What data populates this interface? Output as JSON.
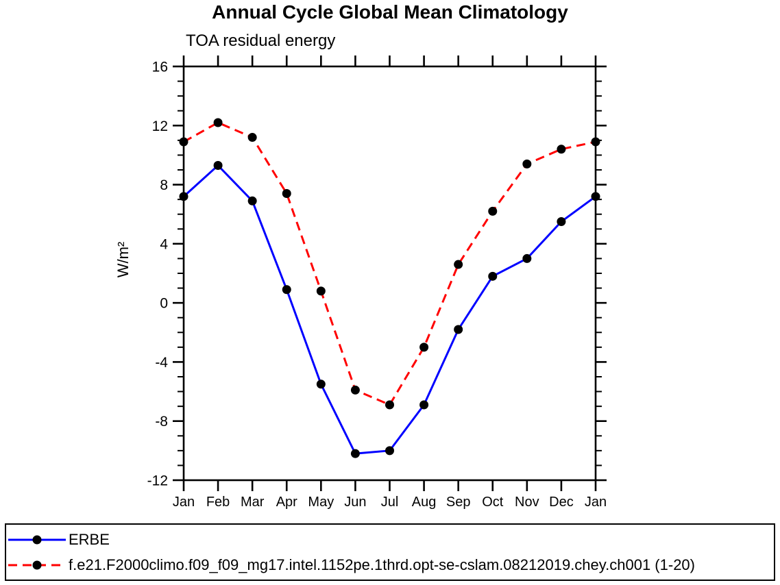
{
  "title": "Annual Cycle Global Mean Climatology",
  "subtitle": "TOA residual energy",
  "chart_data": {
    "type": "line",
    "title": "Annual Cycle Global Mean Climatology",
    "subtitle": "TOA residual energy",
    "xlabel": "",
    "ylabel": "W/m²",
    "categories": [
      "Jan",
      "Feb",
      "Mar",
      "Apr",
      "May",
      "Jun",
      "Jul",
      "Aug",
      "Sep",
      "Oct",
      "Nov",
      "Dec",
      "Jan"
    ],
    "ylim": [
      -12,
      16
    ],
    "ytick_major": 4,
    "ytick_minor": 1,
    "ytick_labels": [
      "-12",
      "-8",
      "-4",
      "0",
      "4",
      "8",
      "12",
      "16"
    ],
    "grid": false,
    "legend_position": "bottom",
    "axis_color": "#000000",
    "marker_shape": "filled-circle",
    "marker_color": "#000000",
    "series": [
      {
        "name": "ERBE",
        "color": "#0000ff",
        "line_style": "solid",
        "values": [
          7.2,
          9.3,
          6.9,
          0.9,
          -5.5,
          -10.2,
          -10,
          -6.9,
          -1.8,
          1.8,
          3,
          5.5,
          7.2
        ]
      },
      {
        "name": "f.e21.F2000climo.f09_f09_mg17.intel.1152pe.1thrd.opt-se-cslam.08212019.chey.ch001 (1-20)",
        "color": "#ff0000",
        "line_style": "dashed",
        "values": [
          10.9,
          12.2,
          11.2,
          7.4,
          0.8,
          -5.9,
          -6.9,
          -3,
          2.6,
          6.2,
          9.4,
          10.4,
          10.9
        ]
      }
    ]
  }
}
